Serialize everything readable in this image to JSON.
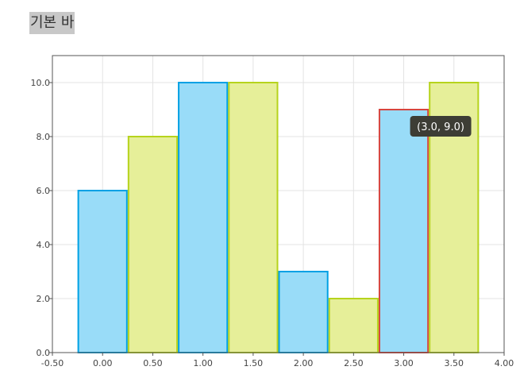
{
  "title": "기본 바",
  "chart_data": {
    "type": "bar",
    "series": [
      {
        "color": "#00a1e4",
        "fill": "#99dcf8",
        "points": [
          {
            "x": 0.0,
            "y": 6.0
          },
          {
            "x": 1.0,
            "y": 10.0
          },
          {
            "x": 2.0,
            "y": 3.0
          },
          {
            "x": 3.0,
            "y": 9.0,
            "highlighted": true,
            "highlight_color": "#d6453f"
          }
        ]
      },
      {
        "color": "#b6d31c",
        "fill": "#e6ef99",
        "points": [
          {
            "x": 0.5,
            "y": 8.0
          },
          {
            "x": 1.5,
            "y": 10.0
          },
          {
            "x": 2.5,
            "y": 2.0
          },
          {
            "x": 3.5,
            "y": 10.0
          }
        ]
      }
    ],
    "bar_width": 0.5,
    "xlim": [
      -0.5,
      4.0
    ],
    "ylim": [
      0,
      11
    ],
    "x_ticks": [
      "-0.50",
      "0.00",
      "0.50",
      "1.00",
      "1.50",
      "2.00",
      "2.50",
      "3.00",
      "3.50",
      "4.00"
    ],
    "y_ticks": [
      "0.0",
      "2.0",
      "4.0",
      "6.0",
      "8.0",
      "10.0"
    ],
    "grid": true,
    "tooltip": {
      "text": "(3.0, 9.0)",
      "x": 3.0,
      "y": 9.0
    }
  }
}
